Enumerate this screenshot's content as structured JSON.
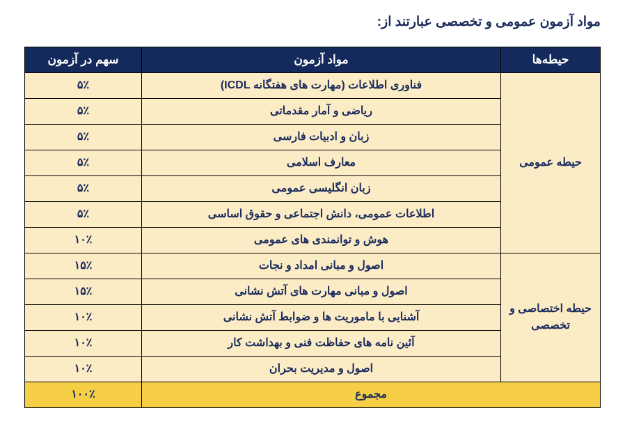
{
  "title": "مواد آزمون عمومی و تخصصی عبارتند از:",
  "headers": {
    "domain": "حیطه‌ها",
    "subject": "مواد آزمون",
    "share": "سهم در آزمون"
  },
  "groups": [
    {
      "name": "حیطه عمومی",
      "rows": [
        {
          "subject": "فناوری اطلاعات (مهارت های هفتگانه ICDL)",
          "share": "۵٪"
        },
        {
          "subject": "ریاضی و آمار مقدماتی",
          "share": "۵٪"
        },
        {
          "subject": "زبان و ادبیات فارسی",
          "share": "۵٪"
        },
        {
          "subject": "معارف اسلامی",
          "share": "۵٪"
        },
        {
          "subject": "زبان انگلیسی عمومی",
          "share": "۵٪"
        },
        {
          "subject": "اطلاعات عمومی، دانش اجتماعی و حقوق اساسی",
          "share": "۵٪"
        },
        {
          "subject": "هوش و توانمندی های عمومی",
          "share": "۱۰٪"
        }
      ]
    },
    {
      "name": "حیطه اختصاصی و تخصصی",
      "rows": [
        {
          "subject": "اصول و مبانی امداد و نجات",
          "share": "۱۵٪"
        },
        {
          "subject": "اصول و مبانی مهارت های آتش نشانی",
          "share": "۱۵٪"
        },
        {
          "subject": "آشنایی با ماموریت ها و ضوابط آتش نشانی",
          "share": "۱۰٪"
        },
        {
          "subject": "آئین نامه های حفاظت فنی و بهداشت کار",
          "share": "۱۰٪"
        },
        {
          "subject": "اصول و مدیریت بحران",
          "share": "۱۰٪"
        }
      ]
    }
  ],
  "total": {
    "label": "مجموع",
    "value": "۱۰۰٪"
  }
}
